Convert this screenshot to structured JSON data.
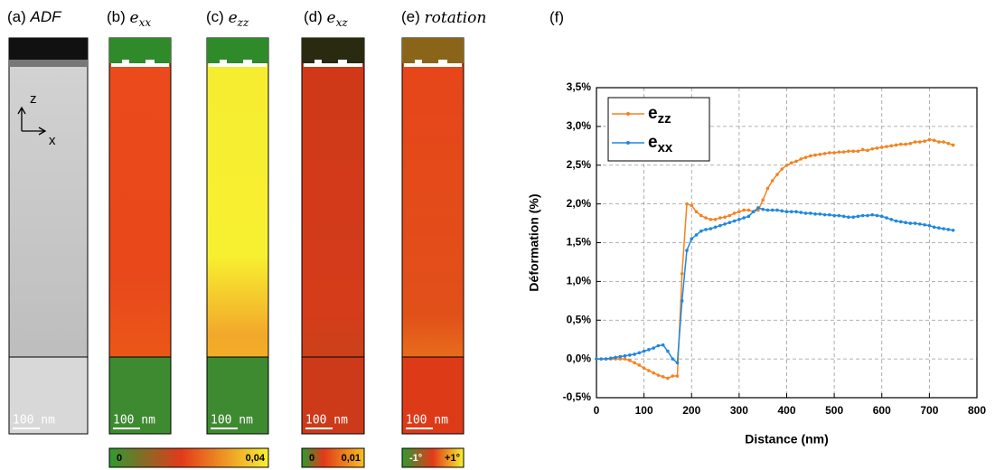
{
  "panels": [
    {
      "label": "(a)",
      "symbol": "ADF",
      "scale_bar": "100 nm",
      "axis_z": "z",
      "axis_x": "x"
    },
    {
      "label": "(b)",
      "symbol": "e",
      "subscript": "xx",
      "scale_bar": "100 nm"
    },
    {
      "label": "(c)",
      "symbol": "e",
      "subscript": "zz",
      "scale_bar": "100 nm"
    },
    {
      "label": "(d)",
      "symbol": "e",
      "subscript": "xz",
      "scale_bar": "100 nm"
    },
    {
      "label": "(e)",
      "symbol": "rotation",
      "scale_bar": "100 nm"
    }
  ],
  "colorbars": [
    {
      "min_label": "0",
      "max_label": "0,04"
    },
    {
      "min_label": "0",
      "max_label": "0,01"
    },
    {
      "min_label": "-1°",
      "max_label": "+1°"
    }
  ],
  "chart_data": {
    "type": "line",
    "label": "(f)",
    "x_label": "Distance (nm)",
    "y_label": "Déformation (%)",
    "xlim": [
      0,
      800
    ],
    "xticks": [
      0,
      100,
      200,
      300,
      400,
      500,
      600,
      700,
      800
    ],
    "ylim": [
      -0.5,
      3.5
    ],
    "yticks": [
      {
        "value": -0.5,
        "label": "-0,5%"
      },
      {
        "value": 0,
        "label": "0,0%"
      },
      {
        "value": 0.5,
        "label": "0,5%"
      },
      {
        "value": 1,
        "label": "1,0%"
      },
      {
        "value": 1.5,
        "label": "1,5%"
      },
      {
        "value": 2,
        "label": "2,0%"
      },
      {
        "value": 2.5,
        "label": "2,5%"
      },
      {
        "value": 3,
        "label": "3,0%"
      },
      {
        "value": 3.5,
        "label": "3,5%"
      }
    ],
    "grid": true,
    "legend": "top-left",
    "x": [
      0,
      10,
      20,
      30,
      40,
      50,
      60,
      70,
      80,
      90,
      100,
      110,
      120,
      130,
      140,
      150,
      160,
      170,
      180,
      190,
      200,
      210,
      220,
      230,
      240,
      250,
      260,
      270,
      280,
      290,
      300,
      310,
      320,
      330,
      340,
      350,
      360,
      370,
      380,
      390,
      400,
      410,
      420,
      430,
      440,
      450,
      460,
      470,
      480,
      490,
      500,
      510,
      520,
      530,
      540,
      550,
      560,
      570,
      580,
      590,
      600,
      610,
      620,
      630,
      640,
      650,
      660,
      670,
      680,
      690,
      700,
      710,
      720,
      730,
      740,
      750
    ],
    "series": [
      {
        "name": "ezz",
        "color": "#f5821f",
        "values": [
          0,
          0,
          0,
          0,
          0,
          0,
          0,
          -0.02,
          -0.05,
          -0.08,
          -0.12,
          -0.15,
          -0.18,
          -0.21,
          -0.23,
          -0.25,
          -0.22,
          -0.22,
          1.1,
          2.0,
          1.98,
          1.9,
          1.85,
          1.82,
          1.8,
          1.8,
          1.82,
          1.83,
          1.85,
          1.88,
          1.9,
          1.92,
          1.92,
          1.9,
          1.92,
          2.05,
          2.2,
          2.3,
          2.38,
          2.45,
          2.5,
          2.53,
          2.55,
          2.58,
          2.6,
          2.62,
          2.63,
          2.64,
          2.65,
          2.66,
          2.66,
          2.67,
          2.67,
          2.68,
          2.68,
          2.68,
          2.7,
          2.69,
          2.71,
          2.72,
          2.73,
          2.74,
          2.75,
          2.76,
          2.77,
          2.77,
          2.78,
          2.8,
          2.8,
          2.81,
          2.83,
          2.82,
          2.8,
          2.8,
          2.78,
          2.76
        ]
      },
      {
        "name": "exx",
        "color": "#1f87e0",
        "values": [
          0,
          0,
          0,
          0.01,
          0.02,
          0.03,
          0.04,
          0.05,
          0.06,
          0.08,
          0.1,
          0.12,
          0.14,
          0.17,
          0.18,
          0.1,
          0,
          -0.05,
          0.75,
          1.4,
          1.55,
          1.6,
          1.65,
          1.67,
          1.68,
          1.7,
          1.72,
          1.74,
          1.76,
          1.78,
          1.8,
          1.82,
          1.84,
          1.9,
          1.95,
          1.93,
          1.92,
          1.92,
          1.92,
          1.91,
          1.9,
          1.9,
          1.9,
          1.89,
          1.88,
          1.88,
          1.87,
          1.87,
          1.86,
          1.86,
          1.85,
          1.85,
          1.84,
          1.83,
          1.83,
          1.84,
          1.85,
          1.85,
          1.86,
          1.85,
          1.84,
          1.82,
          1.8,
          1.78,
          1.77,
          1.76,
          1.75,
          1.75,
          1.74,
          1.73,
          1.72,
          1.7,
          1.69,
          1.68,
          1.67,
          1.66
        ]
      }
    ]
  }
}
